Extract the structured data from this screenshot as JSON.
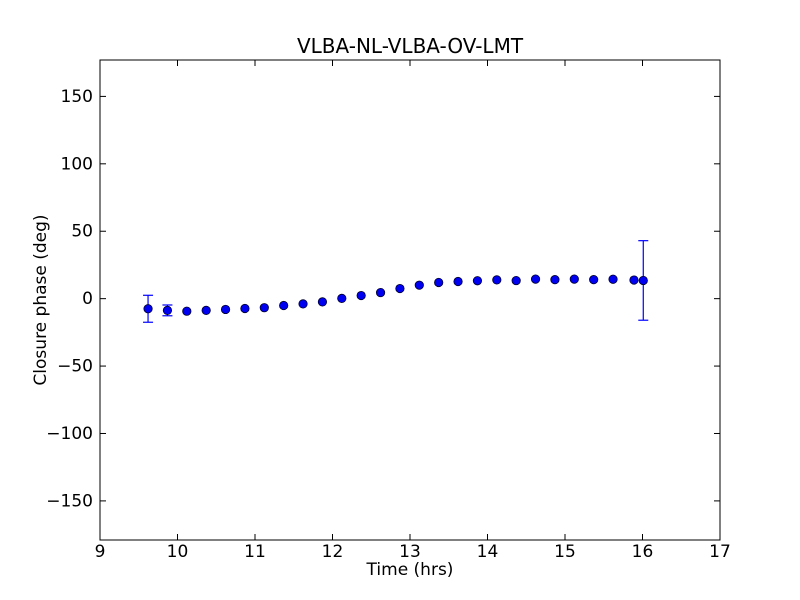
{
  "figure": {
    "background": "#ffffff",
    "axis_color": "#000000",
    "text_color": "#000000"
  },
  "chart_data": {
    "type": "scatter",
    "title": "VLBA-NL-VLBA-OV-LMT",
    "xlabel": "Time (hrs)",
    "ylabel": "Closure phase (deg)",
    "xlim": [
      9,
      17
    ],
    "ylim": [
      -179,
      177
    ],
    "xticks": [
      9,
      10,
      11,
      12,
      13,
      14,
      15,
      16,
      17
    ],
    "yticks": [
      -150,
      -100,
      -50,
      0,
      50,
      100,
      150
    ],
    "grid": false,
    "legend_position": "none",
    "tick_direction": "in",
    "series": [
      {
        "name": "closure phase",
        "marker": "circle",
        "color": "#0000ff",
        "marker_fill": "#0000f0",
        "marker_edge": "#000030",
        "x": [
          9.62,
          9.87,
          10.12,
          10.37,
          10.62,
          10.87,
          11.12,
          11.37,
          11.62,
          11.87,
          12.12,
          12.37,
          12.62,
          12.87,
          13.12,
          13.37,
          13.62,
          13.87,
          14.12,
          14.37,
          14.62,
          14.87,
          15.12,
          15.37,
          15.62,
          15.89,
          16.01
        ],
        "y": [
          -7.5,
          -8.7,
          -9.3,
          -8.7,
          -8.0,
          -7.3,
          -6.7,
          -5.1,
          -3.9,
          -2.4,
          0.2,
          2.3,
          4.5,
          7.5,
          10.0,
          12.0,
          12.7,
          13.3,
          13.9,
          13.4,
          14.5,
          14.1,
          14.5,
          14.1,
          14.4,
          13.8,
          13.5
        ],
        "yerr": [
          10,
          4,
          1.5,
          1.5,
          1.5,
          1.5,
          1.5,
          1.5,
          1.5,
          1.5,
          1.5,
          1.5,
          1.5,
          1.5,
          1.5,
          1.5,
          1.5,
          1.5,
          1.5,
          1.5,
          1.5,
          1.5,
          1.5,
          1.5,
          1.5,
          2.5,
          29.5
        ]
      }
    ]
  }
}
